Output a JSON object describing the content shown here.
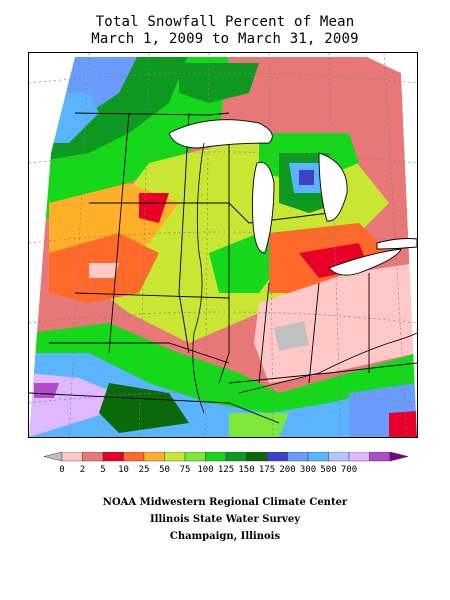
{
  "map": {
    "title_line1": "Total Snowfall Percent of Mean",
    "title_line2": "March 1, 2009 to March 31, 2009",
    "region": "US Midwest",
    "background": "#ffffff"
  },
  "legend": {
    "breaks": [
      "0",
      "2",
      "5",
      "10",
      "25",
      "50",
      "75",
      "100",
      "125",
      "150",
      "175",
      "200",
      "300",
      "500",
      "700"
    ],
    "colors": [
      "#c0c0c0",
      "#ffc8c8",
      "#e87878",
      "#e8002a",
      "#ff6a2a",
      "#ffb028",
      "#c8e632",
      "#7ee83a",
      "#16d81a",
      "#0e9a20",
      "#0a6a0a",
      "#4040c8",
      "#6a9cff",
      "#5ab4ff",
      "#b4c8ff",
      "#e0b8ff",
      "#b04cc8",
      "#7a0088"
    ]
  },
  "credits": {
    "line1": "NOAA Midwestern Regional Climate Center",
    "line2": "Illinois State Water Survey",
    "line3": "Champaign, Illinois"
  }
}
